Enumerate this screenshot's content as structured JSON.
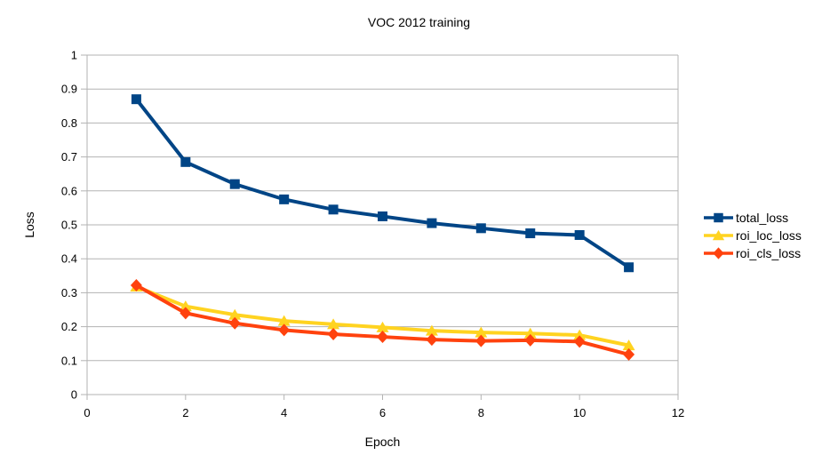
{
  "chart_data": {
    "type": "line",
    "title": "VOC 2012 training",
    "xlabel": "Epoch",
    "ylabel": "Loss",
    "xlim": [
      0,
      12
    ],
    "ylim": [
      0,
      1
    ],
    "x_tick_labels": [
      "0",
      "2",
      "4",
      "6",
      "8",
      "10",
      "12"
    ],
    "y_tick_labels": [
      "0",
      "0.1",
      "0.2",
      "0.3",
      "0.4",
      "0.5",
      "0.6",
      "0.7",
      "0.8",
      "0.9",
      "1"
    ],
    "grid": "horizontal",
    "legend_position": "right",
    "x": [
      1,
      2,
      3,
      4,
      5,
      6,
      7,
      8,
      9,
      10,
      11
    ],
    "series": [
      {
        "name": "total_loss",
        "color": "#004586",
        "marker": "square",
        "values": [
          0.87,
          0.685,
          0.62,
          0.575,
          0.545,
          0.525,
          0.505,
          0.49,
          0.475,
          0.47,
          0.375
        ]
      },
      {
        "name": "roi_loc_loss",
        "color": "#FFD320",
        "marker": "triangle",
        "values": [
          0.318,
          0.26,
          0.235,
          0.217,
          0.207,
          0.198,
          0.188,
          0.183,
          0.18,
          0.175,
          0.145
        ]
      },
      {
        "name": "roi_cls_loss",
        "color": "#FF420E",
        "marker": "diamond",
        "values": [
          0.322,
          0.24,
          0.21,
          0.19,
          0.178,
          0.17,
          0.162,
          0.158,
          0.16,
          0.156,
          0.118
        ]
      }
    ],
    "colors": {
      "grid": "#b3b3b3",
      "axis": "#b3b3b3",
      "text": "#000000",
      "background": "#ffffff"
    }
  }
}
